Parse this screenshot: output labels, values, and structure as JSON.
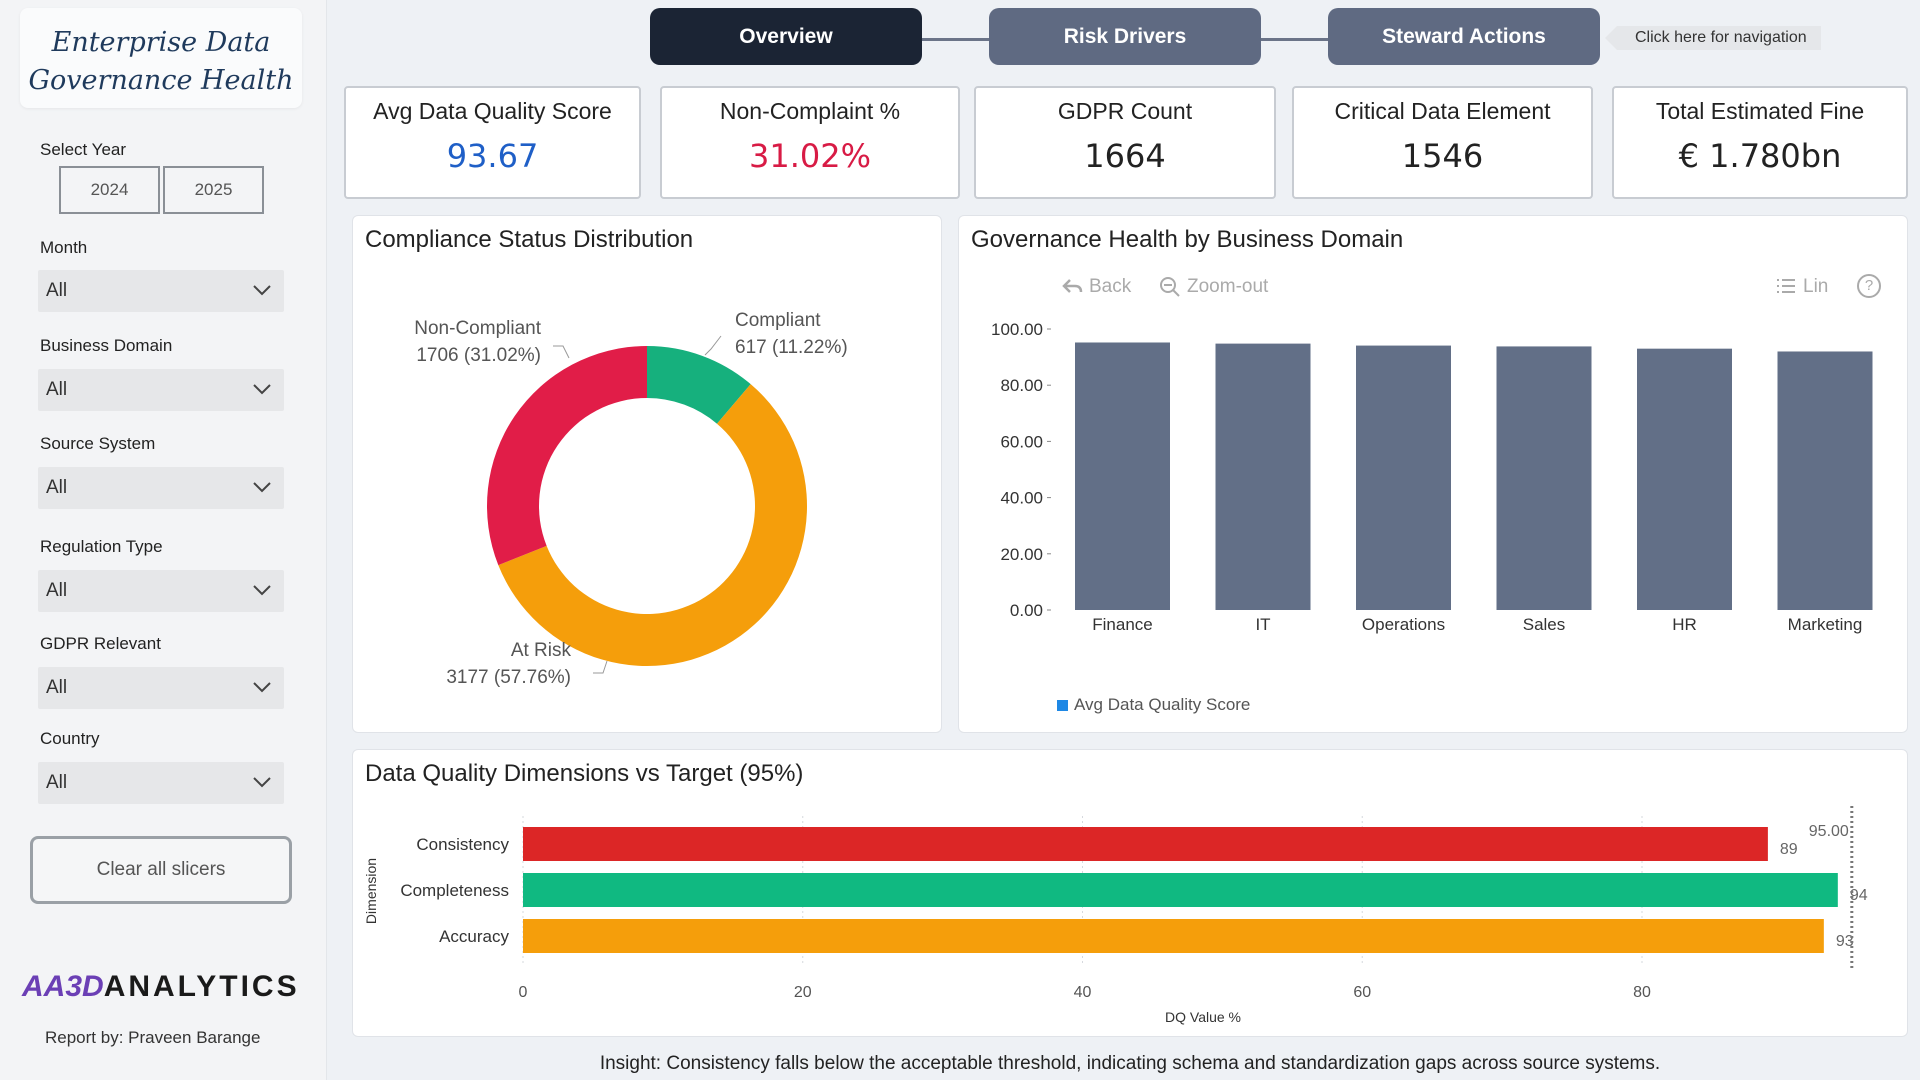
{
  "sidebar": {
    "title_line1": "Enterprise Data",
    "title_line2": "Governance Health",
    "select_year_label": "Select Year",
    "years": [
      "2024",
      "2025"
    ],
    "filters": [
      {
        "label": "Month",
        "value": "All"
      },
      {
        "label": "Business Domain",
        "value": "All"
      },
      {
        "label": "Source System",
        "value": "All"
      },
      {
        "label": "Regulation Type",
        "value": "All"
      },
      {
        "label": "GDPR Relevant",
        "value": "All"
      },
      {
        "label": "Country",
        "value": "All"
      }
    ],
    "clear_label": "Clear all slicers",
    "logo_mark": "AA3D",
    "logo_text": "ANALYTICS",
    "report_by": "Report by: Praveen Barange"
  },
  "nav": {
    "tabs": [
      "Overview",
      "Risk Drivers",
      "Steward Actions"
    ],
    "hint": "Click here for navigation",
    "active_color": "#1b2434",
    "inactive_color": "#5f6a82"
  },
  "kpis": [
    {
      "label": "Avg Data Quality Score",
      "value": "93.67",
      "color": "#1f5fc7"
    },
    {
      "label": "Non-Complaint %",
      "value": "31.02%",
      "color": "#d81b45"
    },
    {
      "label": "GDPR Count",
      "value": "1664",
      "color": "#222222"
    },
    {
      "label": "Critical Data Element",
      "value": "1546",
      "color": "#222222"
    },
    {
      "label": "Total Estimated Fine",
      "value": "€ 1.780bn",
      "color": "#222222"
    }
  ],
  "donut": {
    "title": "Compliance Status Distribution",
    "slices": [
      {
        "name": "Compliant",
        "count": 617,
        "pct": "11.22%",
        "label": "617 (11.22%)",
        "color": "#16b07d"
      },
      {
        "name": "At Risk",
        "count": 3177,
        "pct": "57.76%",
        "label": "3177 (57.76%)",
        "color": "#f59e0b"
      },
      {
        "name": "Non-Compliant",
        "count": 1706,
        "pct": "31.02%",
        "label": "1706 (31.02%)",
        "color": "#e11d48"
      }
    ]
  },
  "bar_panel": {
    "title": "Governance Health by Business Domain",
    "toolbar": {
      "back": "Back",
      "zoom_out": "Zoom-out",
      "lin": "Lin",
      "help": "?"
    },
    "legend": "Avg Data Quality Score",
    "legend_color": "#1e88e5",
    "bar_color": "#626f87"
  },
  "hbar_panel": {
    "title": "Data Quality Dimensions vs Target (95%)",
    "target_label": "95.00",
    "ylabel": "Dimension",
    "xlabel": "DQ Value %"
  },
  "insight": "Insight: Consistency falls below the acceptable threshold, indicating schema and standardization gaps across source systems.",
  "chart_data": [
    {
      "type": "pie",
      "title": "Compliance Status Distribution",
      "categories": [
        "Compliant",
        "At Risk",
        "Non-Compliant"
      ],
      "values": [
        617,
        3177,
        1706
      ]
    },
    {
      "type": "bar",
      "title": "Governance Health by Business Domain",
      "categories": [
        "Finance",
        "IT",
        "Operations",
        "Sales",
        "HR",
        "Marketing"
      ],
      "values": [
        95.2,
        94.8,
        94.1,
        93.8,
        93.0,
        92.0
      ],
      "ylim": [
        0,
        100
      ],
      "yticks": [
        "0.00",
        "20.00",
        "40.00",
        "60.00",
        "80.00",
        "100.00"
      ],
      "legend": "bottom-left"
    },
    {
      "type": "bar",
      "orientation": "horizontal",
      "title": "Data Quality Dimensions vs Target (95%)",
      "categories": [
        "Consistency",
        "Completeness",
        "Accuracy"
      ],
      "values": [
        89,
        94,
        93
      ],
      "labels": [
        "89",
        "94",
        "93"
      ],
      "colors": [
        "#dc2626",
        "#10b981",
        "#f59e0b"
      ],
      "target": 95,
      "xlim": [
        0,
        95
      ],
      "xticks": [
        0,
        20,
        40,
        60,
        80
      ],
      "xlabel": "DQ Value %",
      "ylabel": "Dimension"
    }
  ]
}
